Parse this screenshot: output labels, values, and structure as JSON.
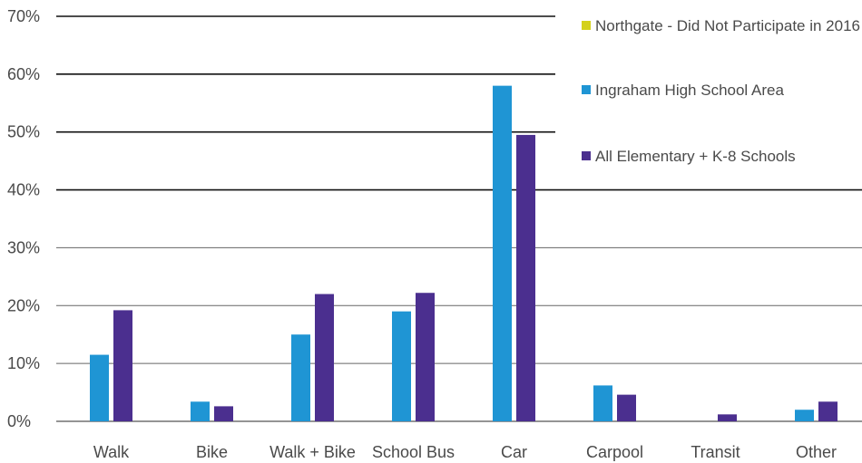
{
  "chart_data": {
    "type": "bar",
    "categories": [
      "Walk",
      "Bike",
      "Walk + Bike",
      "School Bus",
      "Car",
      "Carpool",
      "Transit",
      "Other"
    ],
    "series": [
      {
        "name": "Northgate - Did Not Participate in 2016",
        "color": "#d4d11b",
        "values": [
          null,
          null,
          null,
          null,
          null,
          null,
          null,
          null
        ]
      },
      {
        "name": "Ingraham High School Area",
        "color": "#1f95d4",
        "values": [
          11.5,
          3.4,
          15.0,
          19.0,
          58.0,
          6.2,
          0.0,
          2.0
        ]
      },
      {
        "name": "All Elementary + K-8 Schools",
        "color": "#4b2f8f",
        "values": [
          19.2,
          2.6,
          22.0,
          22.2,
          49.5,
          4.6,
          1.2,
          3.4
        ]
      }
    ],
    "y_ticks": [
      "0%",
      "10%",
      "20%",
      "30%",
      "40%",
      "50%",
      "60%",
      "70%"
    ],
    "ylim": [
      0,
      70
    ],
    "grid": true,
    "legend_position": "top-right"
  }
}
